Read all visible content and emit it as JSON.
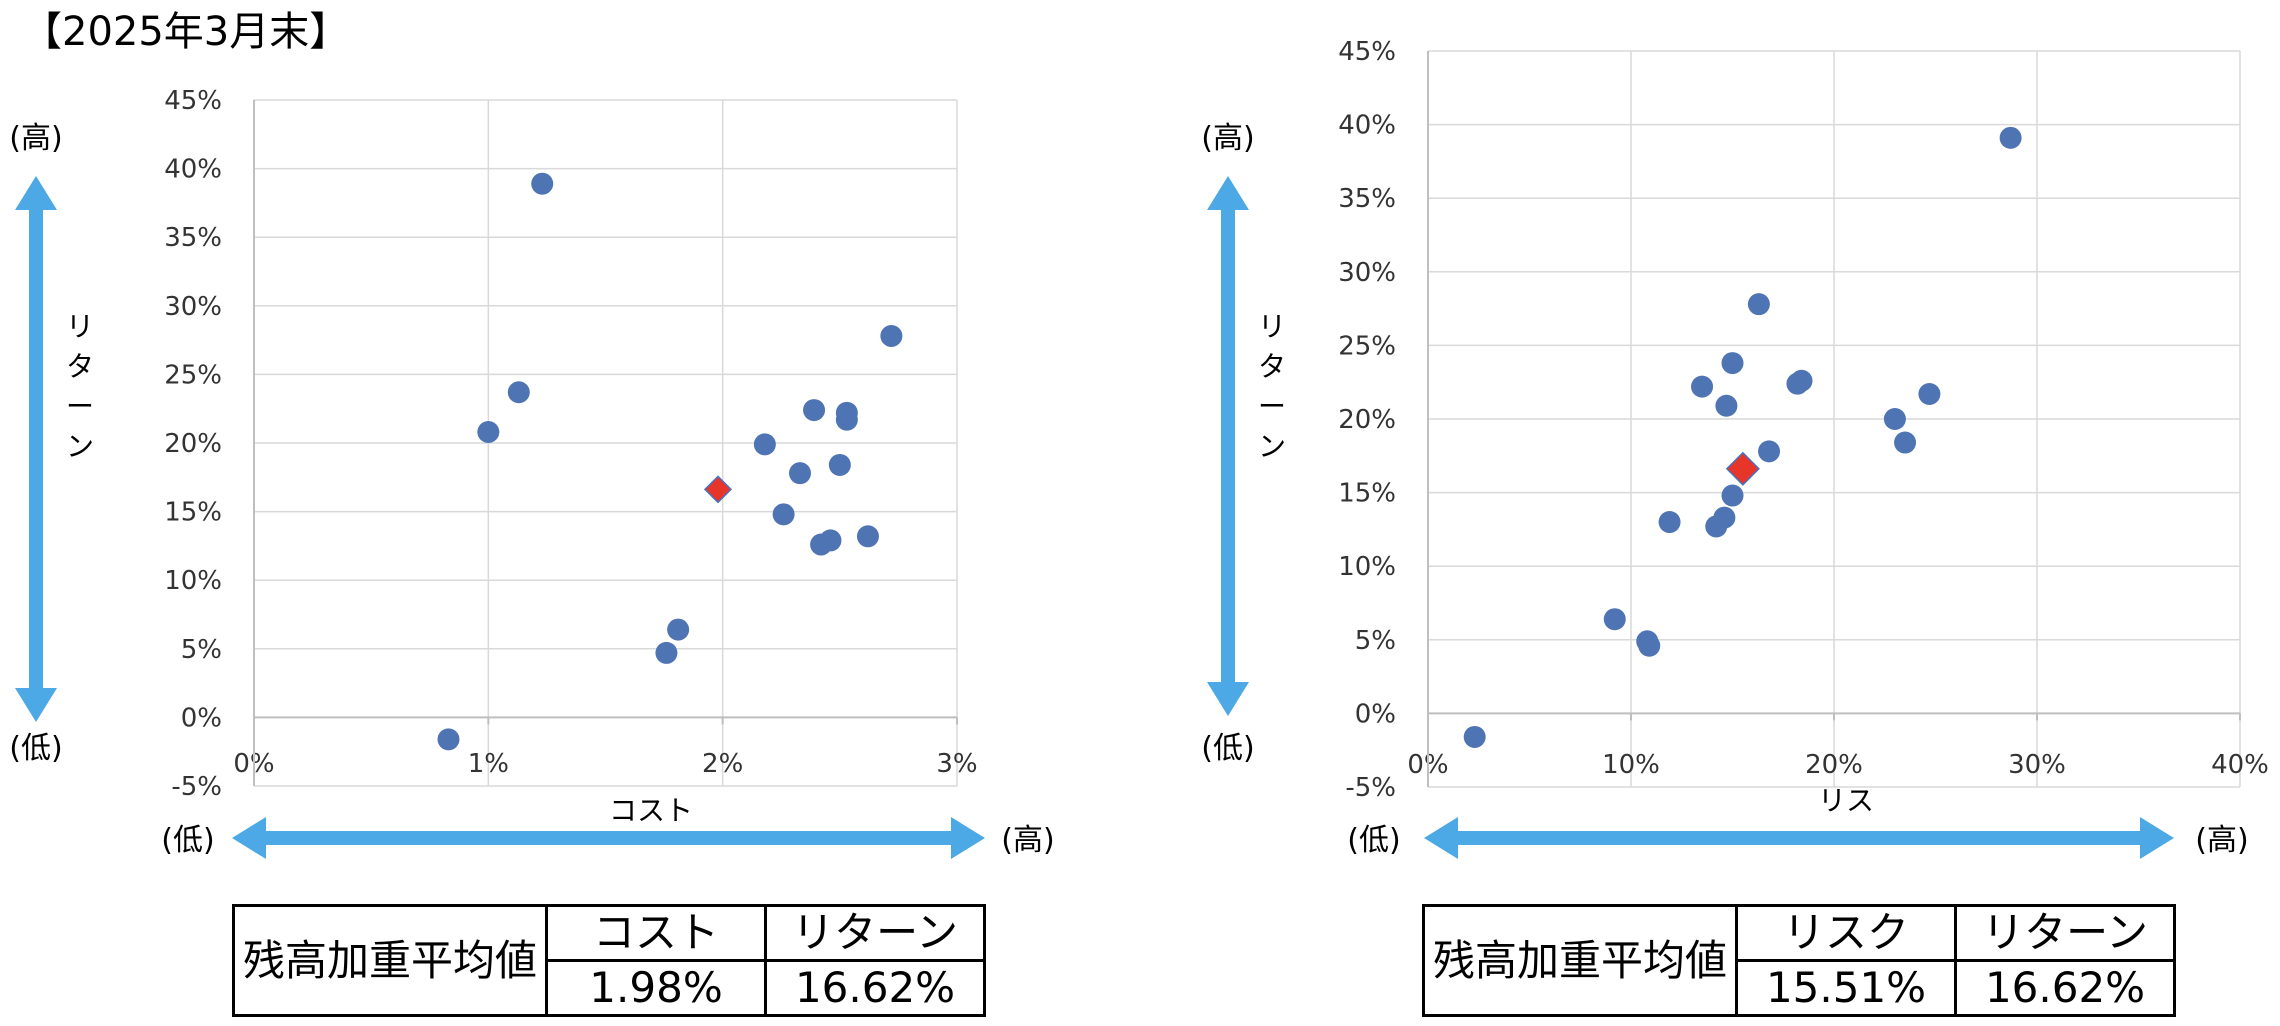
{
  "title": "【2025年3月末】",
  "direction_labels": {
    "high": "(高)",
    "low": "(低)"
  },
  "chart_data": [
    {
      "type": "scatter",
      "xlabel": "コスト",
      "ylabel": "リターン",
      "xlim": [
        0,
        3
      ],
      "ylim": [
        -5,
        45
      ],
      "xticks": [
        "0%",
        "1%",
        "2%",
        "3%"
      ],
      "yticks": [
        "-5%",
        "0%",
        "5%",
        "10%",
        "15%",
        "20%",
        "25%",
        "30%",
        "35%",
        "40%",
        "45%"
      ],
      "grid": true,
      "series": [
        {
          "marker": "circle",
          "color": "#4F74B4",
          "points": [
            [
              0.83,
              -1.6
            ],
            [
              1.0,
              20.8
            ],
            [
              1.13,
              23.7
            ],
            [
              1.23,
              38.9
            ],
            [
              1.76,
              4.7
            ],
            [
              1.81,
              6.4
            ],
            [
              2.18,
              19.9
            ],
            [
              2.26,
              14.8
            ],
            [
              2.33,
              17.8
            ],
            [
              2.39,
              22.4
            ],
            [
              2.42,
              12.6
            ],
            [
              2.46,
              12.9
            ],
            [
              2.5,
              18.4
            ],
            [
              2.53,
              21.7
            ],
            [
              2.53,
              22.2
            ],
            [
              2.62,
              13.2
            ],
            [
              2.72,
              27.8
            ]
          ]
        },
        {
          "marker": "diamond",
          "color": "#E8352A",
          "points": [
            [
              1.98,
              16.62
            ]
          ]
        }
      ]
    },
    {
      "type": "scatter",
      "xlabel": "リス",
      "ylabel": "リターン",
      "xlim": [
        0,
        40
      ],
      "ylim": [
        -5,
        45
      ],
      "xticks": [
        "0%",
        "10%",
        "20%",
        "30%",
        "40%"
      ],
      "yticks": [
        "-5%",
        "0%",
        "5%",
        "10%",
        "15%",
        "20%",
        "25%",
        "30%",
        "35%",
        "40%",
        "45%"
      ],
      "grid": true,
      "series": [
        {
          "marker": "circle",
          "color": "#4F74B4",
          "points": [
            [
              2.3,
              -1.6
            ],
            [
              9.2,
              6.4
            ],
            [
              10.8,
              4.9
            ],
            [
              10.9,
              4.6
            ],
            [
              11.9,
              13.0
            ],
            [
              13.5,
              22.2
            ],
            [
              14.2,
              12.7
            ],
            [
              14.6,
              13.3
            ],
            [
              14.7,
              20.9
            ],
            [
              15.0,
              14.8
            ],
            [
              15.0,
              23.8
            ],
            [
              16.3,
              27.8
            ],
            [
              16.8,
              17.8
            ],
            [
              18.2,
              22.4
            ],
            [
              18.4,
              22.6
            ],
            [
              23.0,
              20.0
            ],
            [
              23.5,
              18.4
            ],
            [
              24.7,
              21.7
            ],
            [
              28.7,
              39.1
            ]
          ]
        },
        {
          "marker": "diamond",
          "color": "#E8352A",
          "points": [
            [
              15.51,
              16.62
            ]
          ]
        }
      ]
    }
  ],
  "tables": [
    {
      "row_header": "残高加重平均値",
      "columns": [
        "コスト",
        "リターン"
      ],
      "values": [
        "1.98%",
        "16.62%"
      ]
    },
    {
      "row_header": "残高加重平均値",
      "columns": [
        "リスク",
        "リターン"
      ],
      "values": [
        "15.51%",
        "16.62%"
      ]
    }
  ],
  "colors": {
    "arrow": "#4DA8E6",
    "grid": "#D9D9D9",
    "axis": "#BFBFBF"
  }
}
